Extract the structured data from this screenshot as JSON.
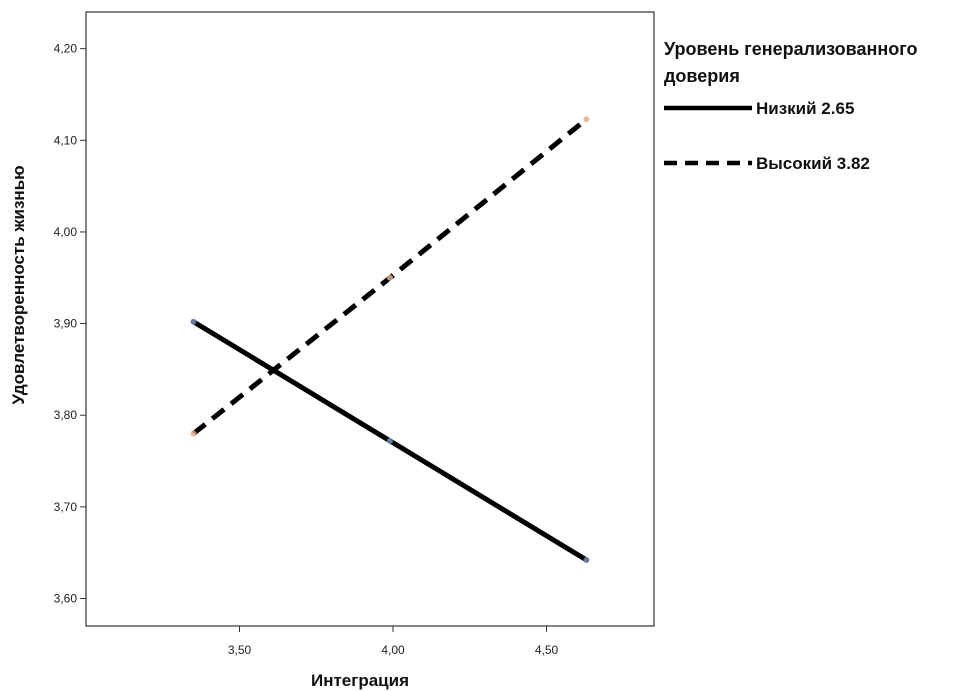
{
  "chart_data": {
    "type": "line",
    "xlabel": "Интеграция",
    "ylabel": "Удовлетворенность жизнью",
    "xlim": [
      3.0,
      4.85
    ],
    "ylim": [
      3.57,
      4.24
    ],
    "xticks": [
      3.5,
      4.0,
      4.5
    ],
    "xtick_labels": [
      "3,50",
      "4,00",
      "4,50"
    ],
    "yticks": [
      3.6,
      3.7,
      3.8,
      3.9,
      4.0,
      4.1,
      4.2
    ],
    "ytick_labels": [
      "3,60",
      "3,70",
      "3,80",
      "3,90",
      "4,00",
      "4,10",
      "4,20"
    ],
    "grid": false,
    "legend": {
      "title_lines": [
        "Уровень генерализованного",
        "доверия"
      ],
      "placement": "right"
    },
    "series": [
      {
        "name": "Низкий 2.65",
        "style": "solid",
        "color": "#000000",
        "x": [
          3.35,
          3.99,
          4.63
        ],
        "y": [
          3.902,
          3.772,
          3.642
        ]
      },
      {
        "name": "Высокий 3.82",
        "style": "dashed",
        "color": "#000000",
        "x": [
          3.35,
          3.99,
          4.63
        ],
        "y": [
          3.78,
          3.95,
          4.123
        ]
      }
    ]
  }
}
